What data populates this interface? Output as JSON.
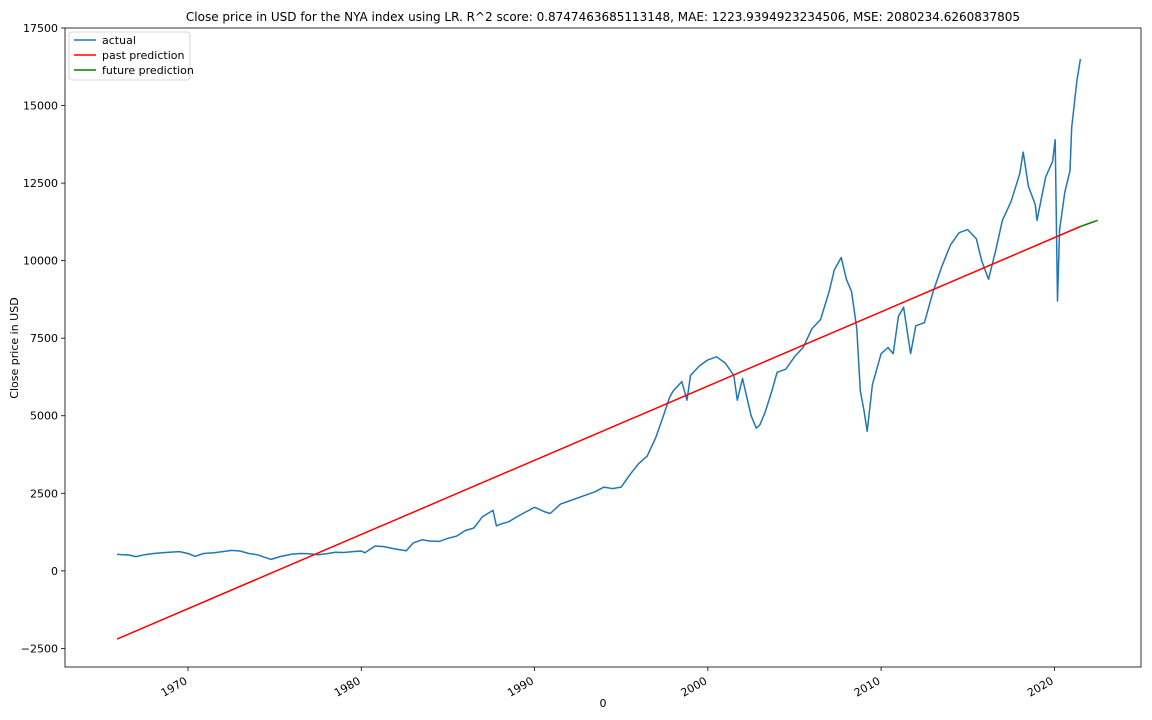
{
  "chart_data": {
    "type": "line",
    "title": "Close price in USD for the NYA index using LR. R^2 score: 0.8747463685113148, MAE: 1223.9394923234506, MSE: 2080234.6260837805",
    "xlabel": "0",
    "ylabel": "Close price in USD",
    "xlim": [
      1962.9,
      2025.0
    ],
    "ylim": [
      -3100,
      17500
    ],
    "xticks": [
      1970,
      1980,
      1990,
      2000,
      2010,
      2020
    ],
    "xtick_labels": [
      "1970",
      "1980",
      "1990",
      "2000",
      "2010",
      "2020"
    ],
    "yticks": [
      -2500,
      0,
      2500,
      5000,
      7500,
      10000,
      12500,
      15000,
      17500
    ],
    "ytick_labels": [
      "−2500",
      "0",
      "2500",
      "5000",
      "7500",
      "10000",
      "12500",
      "15000",
      "17500"
    ],
    "legend_position": "top-left",
    "grid": false,
    "series": [
      {
        "name": "actual",
        "color": "#1f77b4",
        "x": [
          1965.9,
          1966.6,
          1967.0,
          1967.5,
          1968.0,
          1968.9,
          1969.5,
          1970.0,
          1970.4,
          1970.9,
          1971.5,
          1972.0,
          1972.5,
          1973.0,
          1973.5,
          1974.0,
          1974.5,
          1974.8,
          1975.3,
          1976.0,
          1976.5,
          1977.0,
          1977.5,
          1978.0,
          1978.5,
          1979.0,
          1979.5,
          1980.0,
          1980.2,
          1980.8,
          1981.3,
          1982.0,
          1982.6,
          1983.0,
          1983.5,
          1984.0,
          1984.5,
          1985.0,
          1985.5,
          1986.0,
          1986.5,
          1987.0,
          1987.6,
          1987.8,
          1988.0,
          1988.5,
          1989.0,
          1989.5,
          1990.0,
          1990.6,
          1990.9,
          1991.5,
          1992.0,
          1993.0,
          1993.5,
          1994.0,
          1994.5,
          1995.0,
          1995.5,
          1996.0,
          1996.5,
          1997.0,
          1997.5,
          1997.8,
          1998.0,
          1998.5,
          1998.8,
          1999.0,
          1999.5,
          2000.0,
          2000.5,
          2001.0,
          2001.5,
          2001.7,
          2002.0,
          2002.5,
          2002.8,
          2003.0,
          2003.3,
          2003.7,
          2004.0,
          2004.5,
          2005.0,
          2005.5,
          2006.0,
          2006.5,
          2007.0,
          2007.3,
          2007.7,
          2008.0,
          2008.3,
          2008.6,
          2008.8,
          2009.0,
          2009.2,
          2009.5,
          2010.0,
          2010.4,
          2010.7,
          2011.0,
          2011.3,
          2011.7,
          2012.0,
          2012.5,
          2013.0,
          2013.5,
          2014.0,
          2014.5,
          2015.0,
          2015.5,
          2015.8,
          2016.0,
          2016.2,
          2016.6,
          2017.0,
          2017.5,
          2018.0,
          2018.2,
          2018.5,
          2018.9,
          2019.0,
          2019.5,
          2019.9,
          2020.05,
          2020.18,
          2020.3,
          2020.6,
          2020.9,
          2021.0,
          2021.3,
          2021.5
        ],
        "values": [
          530,
          510,
          460,
          520,
          560,
          600,
          620,
          560,
          470,
          560,
          580,
          620,
          660,
          640,
          560,
          520,
          420,
          370,
          460,
          540,
          560,
          550,
          520,
          550,
          600,
          590,
          620,
          640,
          580,
          800,
          780,
          700,
          650,
          900,
          1000,
          960,
          950,
          1050,
          1120,
          1300,
          1380,
          1750,
          1950,
          1450,
          1500,
          1580,
          1750,
          1900,
          2050,
          1900,
          1850,
          2150,
          2250,
          2450,
          2550,
          2700,
          2650,
          2700,
          3100,
          3450,
          3700,
          4300,
          5100,
          5600,
          5800,
          6100,
          5500,
          6300,
          6600,
          6800,
          6900,
          6700,
          6300,
          5500,
          6200,
          5000,
          4600,
          4700,
          5100,
          5800,
          6400,
          6500,
          6900,
          7200,
          7800,
          8100,
          9000,
          9700,
          10100,
          9400,
          9000,
          7800,
          5800,
          5200,
          4500,
          6000,
          7000,
          7200,
          7000,
          8200,
          8500,
          7000,
          7900,
          8000,
          9000,
          9800,
          10500,
          10900,
          11000,
          10700,
          10000,
          9700,
          9400,
          10300,
          11300,
          11900,
          12800,
          13500,
          12400,
          11800,
          11300,
          12700,
          13200,
          13900,
          8700,
          11000,
          12200,
          12900,
          14300,
          15800,
          16500
        ]
      },
      {
        "name": "past prediction",
        "color": "#ff0000",
        "x": [
          1965.9,
          2021.5
        ],
        "values": [
          -2200,
          11100
        ]
      },
      {
        "name": "future prediction",
        "color": "#008000",
        "x": [
          2021.5,
          2022.5
        ],
        "values": [
          11100,
          11300
        ]
      }
    ]
  }
}
